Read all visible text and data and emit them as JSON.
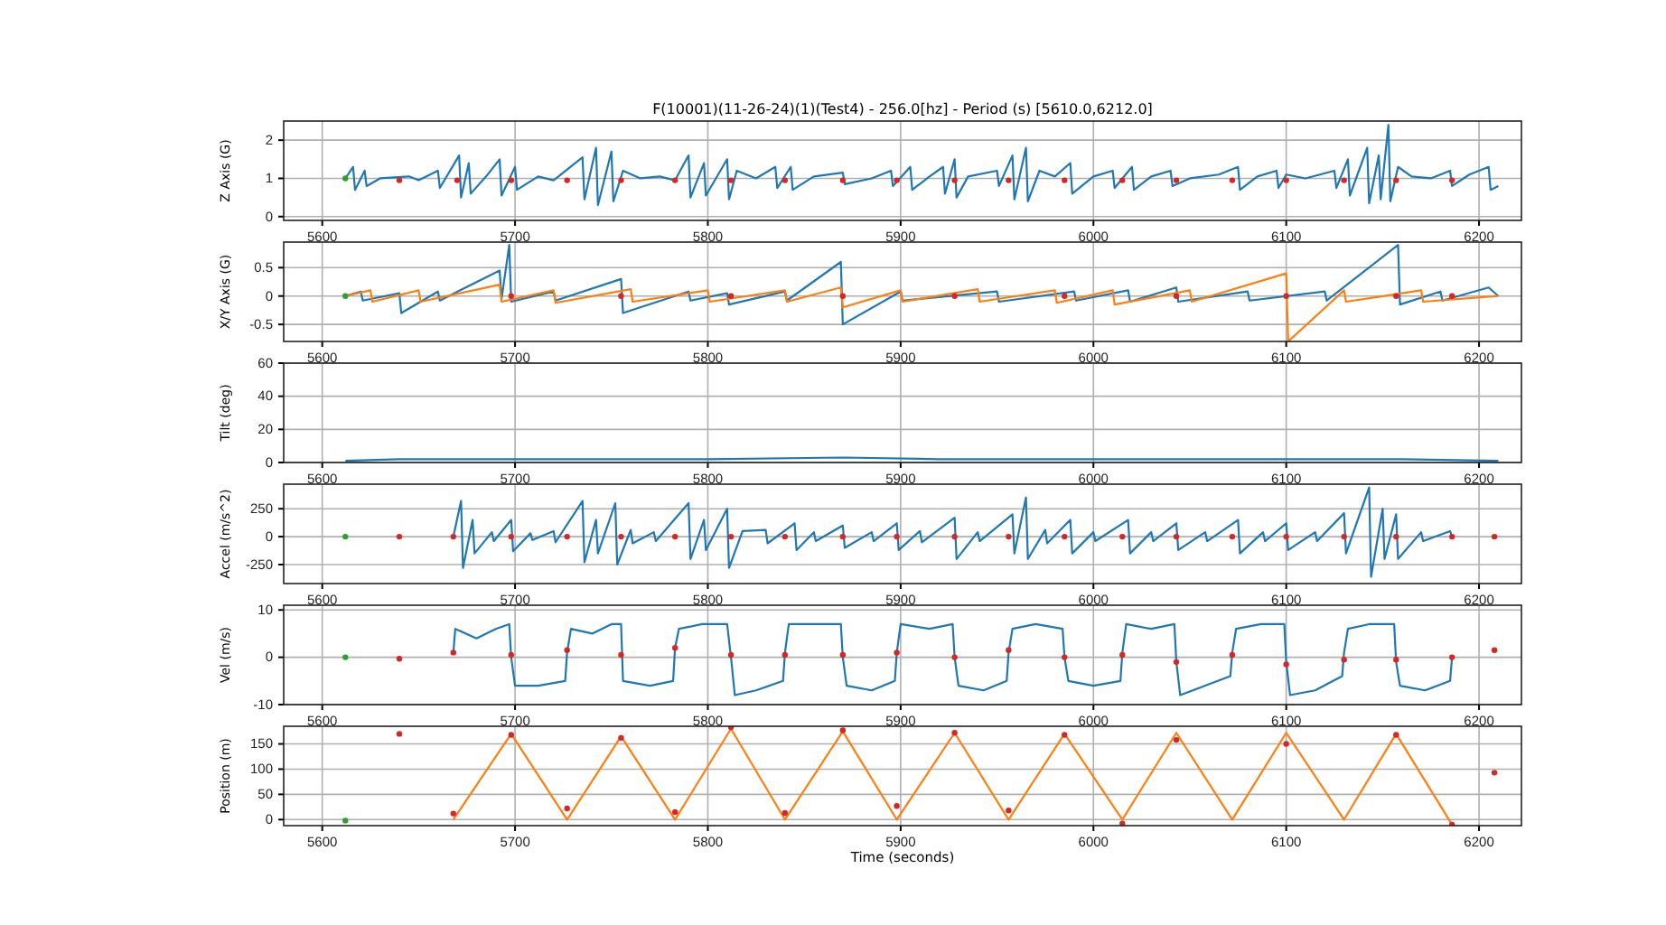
{
  "chart_data": [
    {
      "type": "line",
      "title": "F(10001)(11-26-24)(1)(Test4) - 256.0[hz] - Period (s) [5610.0,6212.0]",
      "ylabel": "Z Axis (G)",
      "xlim": [
        5580,
        6222
      ],
      "xticks": [
        5600,
        5700,
        5800,
        5900,
        6000,
        6100,
        6200
      ],
      "ylim": [
        -0.1,
        2.5
      ],
      "yticks": [
        0,
        1,
        2
      ],
      "grid": true,
      "series": [
        {
          "type": "line",
          "color": "#1f77b4",
          "x": [
            5612,
            5616,
            5617,
            5622,
            5623,
            5630,
            5645,
            5650,
            5660,
            5661,
            5671,
            5672,
            5676,
            5677,
            5685,
            5692,
            5693,
            5700,
            5701,
            5712,
            5720,
            5735,
            5736,
            5742,
            5743,
            5750,
            5751,
            5756,
            5765,
            5775,
            5783,
            5790,
            5791,
            5798,
            5799,
            5810,
            5811,
            5815,
            5825,
            5835,
            5836,
            5843,
            5844,
            5855,
            5870,
            5871,
            5885,
            5895,
            5896,
            5905,
            5906,
            5915,
            5922,
            5923,
            5928,
            5929,
            5935,
            5950,
            5951,
            5958,
            5959,
            5965,
            5966,
            5972,
            5980,
            5988,
            5989,
            6000,
            6010,
            6011,
            6020,
            6021,
            6030,
            6040,
            6041,
            6050,
            6065,
            6075,
            6076,
            6085,
            6095,
            6096,
            6100,
            6110,
            6125,
            6126,
            6132,
            6133,
            6142,
            6143,
            6148,
            6149,
            6153,
            6154,
            6158,
            6165,
            6175,
            6185,
            6186,
            6195,
            6205,
            6206,
            6210
          ],
          "values": [
            1,
            1.3,
            0.7,
            1.2,
            0.8,
            1,
            1.05,
            0.95,
            1.2,
            0.75,
            1.6,
            0.5,
            1.4,
            0.6,
            1.05,
            1.5,
            0.55,
            1.3,
            0.7,
            1.05,
            0.95,
            1.55,
            0.45,
            1.8,
            0.3,
            1.7,
            0.4,
            1.2,
            1,
            1.05,
            0.95,
            1.6,
            0.5,
            1.4,
            0.55,
            1.5,
            0.45,
            1.2,
            1,
            1.3,
            0.75,
            1.3,
            0.7,
            1.05,
            1.15,
            0.85,
            1,
            1.2,
            0.8,
            1.3,
            0.7,
            1.05,
            1.3,
            0.6,
            1.5,
            0.5,
            1.05,
            1.2,
            0.8,
            1.6,
            0.45,
            1.8,
            0.4,
            1.2,
            1.05,
            1.4,
            0.6,
            1.05,
            1.2,
            0.75,
            1.3,
            0.7,
            1.05,
            1.2,
            0.8,
            1,
            1.1,
            1.3,
            0.7,
            1.05,
            1.2,
            0.75,
            1.1,
            1,
            1.2,
            0.75,
            1.5,
            0.55,
            1.8,
            0.35,
            1.6,
            0.45,
            2.4,
            0.4,
            1.3,
            1.05,
            1,
            1.2,
            0.8,
            1.1,
            1.3,
            0.7,
            0.8
          ]
        },
        {
          "type": "scatter",
          "color": "#2ca02c",
          "x": [
            5612
          ],
          "values": [
            1
          ]
        },
        {
          "type": "scatter",
          "color": "#d62728",
          "x": [
            5640,
            5670,
            5698,
            5727,
            5755,
            5783,
            5812,
            5840,
            5870,
            5898,
            5928,
            5956,
            5985,
            6015,
            6043,
            6072,
            6100,
            6130,
            6157,
            6186
          ],
          "values": [
            0.95,
            0.95,
            0.95,
            0.95,
            0.95,
            0.95,
            0.95,
            0.95,
            0.95,
            0.95,
            0.95,
            0.95,
            0.95,
            0.95,
            0.95,
            0.95,
            0.95,
            0.95,
            0.95,
            0.95
          ]
        }
      ]
    },
    {
      "type": "line",
      "ylabel": "X/Y Axis (G)",
      "xlim": [
        5580,
        6222
      ],
      "xticks": [
        5600,
        5700,
        5800,
        5900,
        6000,
        6100,
        6200
      ],
      "ylim": [
        -0.8,
        0.95
      ],
      "yticks": [
        -0.5,
        0,
        0.5
      ],
      "grid": true,
      "series": [
        {
          "type": "line",
          "color": "#1f77b4",
          "x": [
            5612,
            5620,
            5621,
            5640,
            5641,
            5660,
            5661,
            5692,
            5693,
            5697,
            5698,
            5720,
            5721,
            5755,
            5756,
            5790,
            5791,
            5810,
            5811,
            5840,
            5841,
            5869,
            5870,
            5900,
            5901,
            5950,
            5951,
            5990,
            5991,
            6018,
            6019,
            6043,
            6044,
            6080,
            6081,
            6120,
            6121,
            6158,
            6159,
            6180,
            6181,
            6205,
            6210
          ],
          "values": [
            0,
            0.08,
            -0.08,
            0.05,
            -0.3,
            0.08,
            -0.08,
            0.45,
            -0.05,
            0.9,
            -0.1,
            0.08,
            -0.08,
            0.3,
            -0.3,
            0.08,
            -0.08,
            0.05,
            -0.15,
            0.08,
            -0.08,
            0.6,
            -0.5,
            0.08,
            -0.08,
            0.08,
            -0.1,
            0.08,
            -0.08,
            0.1,
            -0.1,
            0.15,
            -0.1,
            0.08,
            -0.08,
            0.08,
            -0.08,
            0.9,
            -0.15,
            0.08,
            -0.08,
            0.15,
            0
          ]
        },
        {
          "type": "line",
          "color": "#ff7f0e",
          "x": [
            5612,
            5625,
            5626,
            5650,
            5651,
            5692,
            5693,
            5720,
            5721,
            5760,
            5761,
            5800,
            5801,
            5840,
            5841,
            5869,
            5870,
            5900,
            5901,
            5940,
            5941,
            5980,
            5981,
            6010,
            6011,
            6050,
            6051,
            6100,
            6101,
            6130,
            6131,
            6170,
            6171,
            6210
          ],
          "values": [
            0,
            0.1,
            -0.1,
            0.1,
            -0.1,
            0.2,
            -0.1,
            0.1,
            -0.12,
            0.12,
            -0.1,
            0.1,
            -0.1,
            0.1,
            -0.1,
            0.15,
            -0.2,
            0.1,
            -0.1,
            0.12,
            -0.1,
            0.1,
            -0.12,
            0.1,
            -0.15,
            0.1,
            -0.1,
            0.4,
            -0.8,
            0.1,
            -0.1,
            0.1,
            -0.1,
            0
          ]
        },
        {
          "type": "scatter",
          "color": "#2ca02c",
          "x": [
            5612
          ],
          "values": [
            0
          ]
        },
        {
          "type": "scatter",
          "color": "#d62728",
          "x": [
            5698,
            5755,
            5812,
            5870,
            5928,
            5985,
            6043,
            6100,
            6157,
            6186
          ],
          "values": [
            0,
            0,
            0,
            0,
            0,
            0,
            0,
            0,
            0,
            0
          ]
        }
      ]
    },
    {
      "type": "line",
      "ylabel": "Tilt (deg)",
      "xlim": [
        5580,
        6222
      ],
      "xticks": [
        5600,
        5700,
        5800,
        5900,
        6000,
        6100,
        6200
      ],
      "ylim": [
        0,
        60
      ],
      "yticks": [
        0,
        20,
        40,
        60
      ],
      "grid": true,
      "series": [
        {
          "type": "line",
          "color": "#1f77b4",
          "x": [
            5612,
            5640,
            5700,
            5760,
            5800,
            5870,
            5920,
            5980,
            6040,
            6100,
            6160,
            6210
          ],
          "values": [
            1,
            2,
            2,
            2,
            2,
            3,
            2,
            2,
            2,
            2,
            2,
            1
          ]
        }
      ]
    },
    {
      "type": "line",
      "ylabel": "Accel (m/s^2)",
      "xlim": [
        5580,
        6222
      ],
      "xticks": [
        5600,
        5700,
        5800,
        5900,
        6000,
        6100,
        6200
      ],
      "ylim": [
        -420,
        470
      ],
      "yticks": [
        -250,
        0,
        250
      ],
      "grid": true,
      "series": [
        {
          "type": "line",
          "color": "#1f77b4",
          "x": [
            5668,
            5672,
            5673,
            5678,
            5679,
            5688,
            5689,
            5698,
            5699,
            5708,
            5709,
            5720,
            5721,
            5735,
            5736,
            5742,
            5743,
            5752,
            5753,
            5760,
            5761,
            5772,
            5773,
            5790,
            5791,
            5798,
            5799,
            5810,
            5811,
            5818,
            5830,
            5831,
            5845,
            5846,
            5855,
            5856,
            5870,
            5871,
            5885,
            5886,
            5898,
            5899,
            5910,
            5911,
            5928,
            5929,
            5940,
            5941,
            5958,
            5959,
            5965,
            5966,
            5975,
            5976,
            5988,
            5989,
            6000,
            6001,
            6018,
            6019,
            6030,
            6031,
            6043,
            6044,
            6058,
            6059,
            6075,
            6076,
            6088,
            6089,
            6100,
            6101,
            6115,
            6116,
            6130,
            6131,
            6143,
            6144,
            6150,
            6151,
            6157,
            6158,
            6170,
            6171,
            6185,
            6186
          ],
          "values": [
            0,
            320,
            -280,
            150,
            -150,
            40,
            -40,
            150,
            -130,
            30,
            -30,
            50,
            -50,
            320,
            -230,
            150,
            -150,
            300,
            -250,
            60,
            -60,
            40,
            -40,
            300,
            -200,
            150,
            -120,
            250,
            -280,
            50,
            60,
            -60,
            120,
            -120,
            40,
            -40,
            100,
            -100,
            40,
            -40,
            120,
            -120,
            50,
            -50,
            170,
            -200,
            40,
            -40,
            200,
            -150,
            350,
            -200,
            60,
            -60,
            150,
            -150,
            40,
            -40,
            150,
            -150,
            40,
            -40,
            120,
            -120,
            40,
            -40,
            150,
            -150,
            40,
            -40,
            120,
            -120,
            40,
            -40,
            210,
            -150,
            440,
            -360,
            250,
            -200,
            200,
            -200,
            40,
            -40,
            50,
            0
          ]
        },
        {
          "type": "scatter",
          "color": "#2ca02c",
          "x": [
            5612
          ],
          "values": [
            0
          ]
        },
        {
          "type": "scatter",
          "color": "#d62728",
          "x": [
            5640,
            5668,
            5698,
            5727,
            5755,
            5783,
            5812,
            5840,
            5870,
            5898,
            5928,
            5956,
            5985,
            6015,
            6043,
            6072,
            6100,
            6130,
            6157,
            6186,
            6208
          ],
          "values": [
            0,
            0,
            0,
            0,
            0,
            0,
            0,
            0,
            0,
            0,
            0,
            0,
            0,
            0,
            0,
            0,
            0,
            0,
            0,
            0,
            0
          ]
        }
      ]
    },
    {
      "type": "line",
      "ylabel": "Vel (m/s)",
      "xlim": [
        5580,
        6222
      ],
      "xticks": [
        5600,
        5700,
        5800,
        5900,
        6000,
        6100,
        6200
      ],
      "ylim": [
        -10,
        11
      ],
      "yticks": [
        -10,
        0,
        10
      ],
      "grid": true,
      "series": [
        {
          "type": "line",
          "color": "#1f77b4",
          "x": [
            5668,
            5669,
            5680,
            5690,
            5697,
            5698,
            5700,
            5712,
            5726,
            5727,
            5729,
            5740,
            5750,
            5755,
            5756,
            5770,
            5782,
            5783,
            5785,
            5797,
            5810,
            5812,
            5814,
            5825,
            5839,
            5840,
            5842,
            5855,
            5869,
            5870,
            5872,
            5885,
            5897,
            5898,
            5900,
            5915,
            5927,
            5928,
            5930,
            5943,
            5955,
            5956,
            5958,
            5970,
            5984,
            5985,
            5987,
            6000,
            6014,
            6015,
            6017,
            6030,
            6042,
            6043,
            6045,
            6058,
            6071,
            6072,
            6074,
            6087,
            6099,
            6100,
            6102,
            6115,
            6129,
            6130,
            6132,
            6143,
            6156,
            6157,
            6159,
            6172,
            6185,
            6186
          ],
          "values": [
            1,
            6,
            4,
            6,
            7,
            0,
            -6,
            -6,
            -5,
            1,
            6,
            5,
            7,
            7,
            -5,
            -6,
            -5,
            2,
            6,
            7,
            7,
            0,
            -8,
            -7,
            -5,
            1,
            7,
            7,
            7,
            0,
            -6,
            -7,
            -5,
            1,
            7,
            6,
            7,
            0,
            -6,
            -7,
            -5,
            1,
            6,
            7,
            6,
            0,
            -5,
            -6,
            -5,
            1,
            7,
            6,
            7,
            -1,
            -8,
            -6,
            -4,
            1,
            6,
            7,
            7,
            -1,
            -8,
            -7,
            -4,
            1,
            6,
            7,
            7,
            -1,
            -6,
            -7,
            -5,
            0
          ]
        },
        {
          "type": "scatter",
          "color": "#2ca02c",
          "x": [
            5612
          ],
          "values": [
            0
          ]
        },
        {
          "type": "scatter",
          "color": "#d62728",
          "x": [
            5640,
            5668,
            5698,
            5727,
            5755,
            5783,
            5812,
            5840,
            5870,
            5898,
            5928,
            5956,
            5985,
            6015,
            6043,
            6072,
            6100,
            6130,
            6157,
            6186,
            6208
          ],
          "values": [
            -0.3,
            1,
            0.5,
            1.5,
            0.5,
            2,
            0.5,
            0.5,
            0.5,
            1,
            0,
            1.5,
            0,
            0.5,
            -1,
            0.5,
            -1.5,
            -0.5,
            -0.5,
            0,
            1.5
          ]
        }
      ]
    },
    {
      "type": "line",
      "ylabel": "Position (m)",
      "xlabel": "Time (seconds)",
      "xlim": [
        5580,
        6222
      ],
      "xticks": [
        5600,
        5700,
        5800,
        5900,
        6000,
        6100,
        6200
      ],
      "ylim": [
        -12,
        185
      ],
      "yticks": [
        0,
        50,
        100,
        150
      ],
      "grid": true,
      "series": [
        {
          "type": "line",
          "color": "#ff7f0e",
          "x": [
            5668,
            5698,
            5727,
            5755,
            5783,
            5812,
            5840,
            5870,
            5898,
            5928,
            5956,
            5985,
            6015,
            6043,
            6072,
            6100,
            6130,
            6157,
            6186
          ],
          "values": [
            0,
            170,
            0,
            165,
            0,
            180,
            0,
            175,
            0,
            172,
            0,
            170,
            0,
            172,
            0,
            172,
            0,
            170,
            -10
          ]
        },
        {
          "type": "scatter",
          "color": "#2ca02c",
          "x": [
            5612
          ],
          "values": [
            -2
          ]
        },
        {
          "type": "scatter",
          "color": "#d62728",
          "x": [
            5640,
            5668,
            5698,
            5727,
            5755,
            5783,
            5812,
            5840,
            5870,
            5898,
            5928,
            5956,
            5985,
            6015,
            6043,
            6100,
            6157,
            6186,
            6208
          ],
          "values": [
            170,
            12,
            168,
            22,
            162,
            15,
            183,
            13,
            177,
            27,
            172,
            18,
            168,
            -8,
            158,
            150,
            168,
            -10,
            93
          ]
        }
      ]
    }
  ]
}
